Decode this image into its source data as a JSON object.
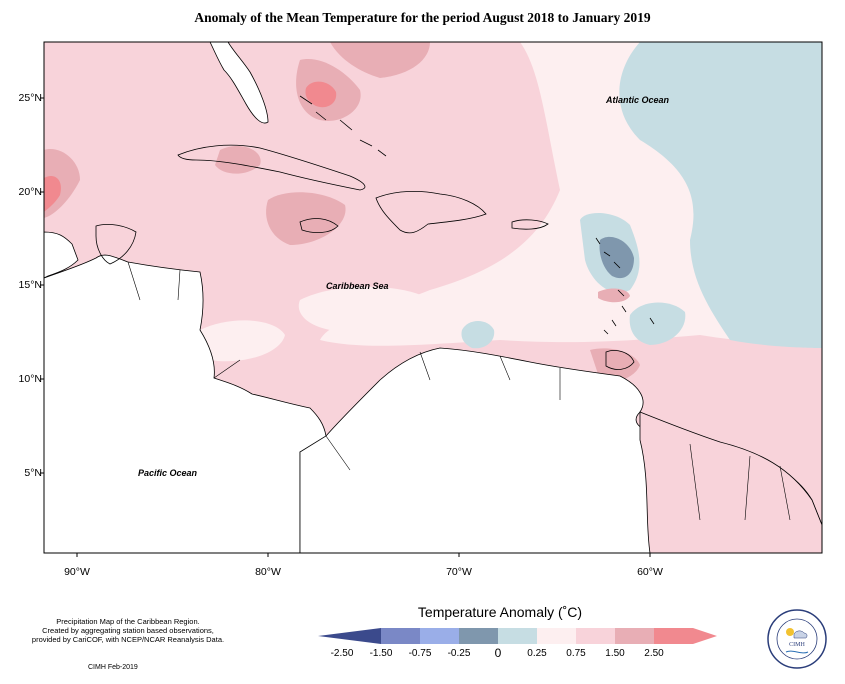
{
  "title": "Anomaly of the Mean Temperature for the period August 2018 to January 2019",
  "map": {
    "lat_labels": [
      "25°N",
      "20°N",
      "15°N",
      "10°N",
      "5°N"
    ],
    "lon_labels": [
      "90°W",
      "80°W",
      "70°W",
      "60°W"
    ],
    "places": {
      "atlantic": "Atlantic Ocean",
      "caribbean": "Caribbean Sea",
      "pacific": "Pacific Ocean"
    },
    "extent": {
      "lon": [
        -92,
        -51
      ],
      "lat": [
        1.5,
        28
      ]
    }
  },
  "legend": {
    "title": "Temperature Anomaly (˚C)",
    "bins": [
      {
        "color": "#3b4a8c"
      },
      {
        "color": "#7a88c6"
      },
      {
        "color": "#9aaee8"
      },
      {
        "color": "#7f97ad"
      },
      {
        "color": "#c6dde3"
      },
      {
        "color": "#fdeff0"
      },
      {
        "color": "#f8d3da"
      },
      {
        "color": "#e8aeb5"
      },
      {
        "color": "#f1898f"
      }
    ],
    "ticks": [
      "-2.50",
      "-1.50",
      "-0.75",
      "-0.25",
      "0",
      "0.25",
      "0.75",
      "1.50",
      "2.50"
    ]
  },
  "credits": {
    "line1": "Precipitation Map of the Caribbean Region.",
    "line2": "Created by aggregating station based observations,",
    "line3": "provided by CariCOF, with NCEP/NCAR Reanalysis Data.",
    "date": "CIMH Feb-2019"
  },
  "logo": {
    "text": "CIMH",
    "ring_text": "Caribbean Institute for Meteorology and Hydrology"
  }
}
